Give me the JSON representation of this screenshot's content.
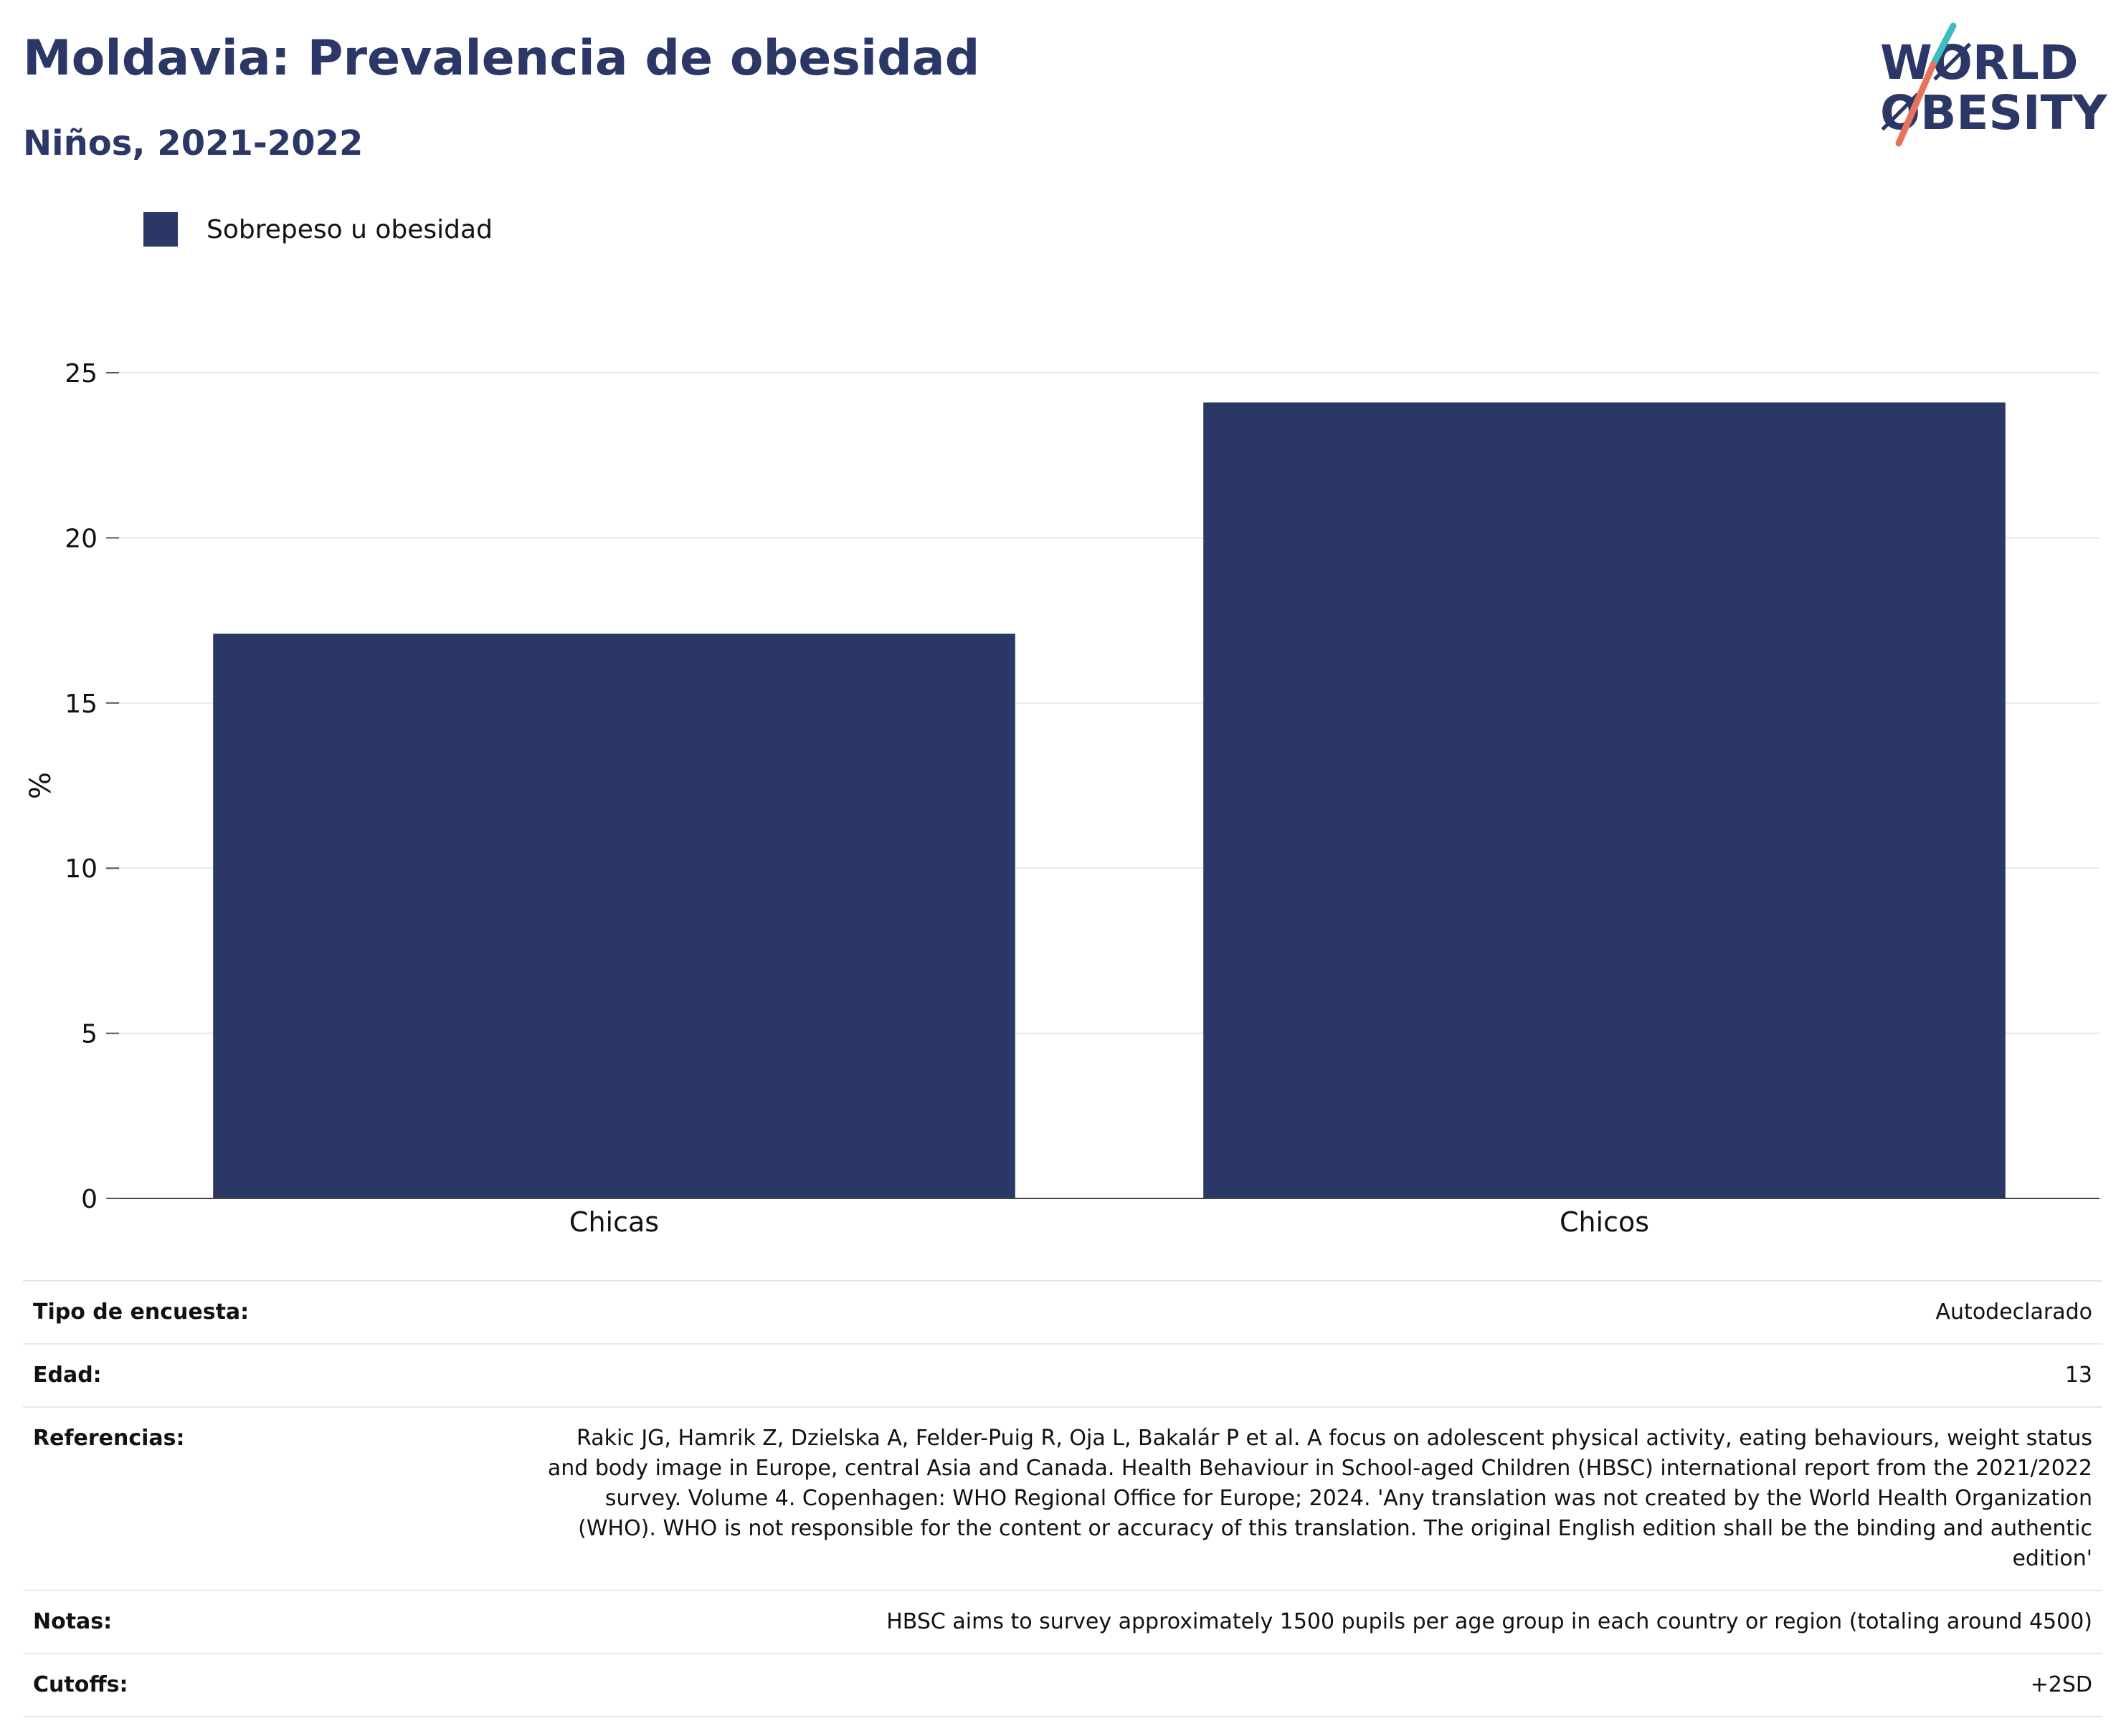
{
  "header": {
    "title": "Moldavia: Prevalencia de obesidad",
    "subtitle": "Niños, 2021-2022"
  },
  "logo": {
    "line1": "WØRLD",
    "line2": "ØBESITY",
    "colors": {
      "text": "#2b3766",
      "slash_teal": "#3dbdbd",
      "slash_coral": "#e8735c"
    }
  },
  "chart_data": {
    "type": "bar",
    "categories": [
      "Chicas",
      "Chicos"
    ],
    "series": [
      {
        "name": "Sobrepeso u obesidad",
        "values": [
          17.1,
          24.1
        ],
        "color": "#2b3766"
      }
    ],
    "title": "",
    "xlabel": "",
    "ylabel": "%",
    "ylim": [
      0,
      25
    ],
    "yticks": [
      0,
      5,
      10,
      15,
      20,
      25
    ],
    "grid": true,
    "legend": "top-left"
  },
  "info": {
    "rows": [
      {
        "label": "Tipo de encuesta:",
        "value": "Autodeclarado"
      },
      {
        "label": "Edad:",
        "value": "13"
      },
      {
        "label": "Referencias:",
        "value": "Rakic JG, Hamrik Z, Dzielska A, Felder-Puig R, Oja L, Bakalár P et al. A focus on adolescent physical activity, eating behaviours, weight status and body image in Europe, central Asia and Canada. Health Behaviour in School-aged Children (HBSC) international report from the 2021/2022 survey. Volume 4. Copenhagen: WHO Regional Office for Europe; 2024. 'Any translation was not created by the World Health Organization (WHO). WHO is not responsible for the content or accuracy of this translation. The original English edition shall be the binding and authentic edition'"
      },
      {
        "label": "Notas:",
        "value": "HBSC aims to survey approximately 1500 pupils per age group in each country or region (totaling around 4500)"
      },
      {
        "label": "Cutoffs:",
        "value": "+2SD"
      }
    ]
  }
}
